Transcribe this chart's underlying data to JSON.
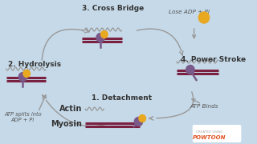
{
  "bg_color": "#c5d9e8",
  "actin_color": "#7a2040",
  "myosin_color": "#7a5a8a",
  "atp_color": "#e8a820",
  "atp_color2": "#f0c030",
  "labels": {
    "step1": "1. Detachment",
    "step2": "2. Hydrolysis",
    "step3": "3. Cross Bridge",
    "step4": "4. Power Stroke",
    "actin": "Actin",
    "myosin": "Myosin",
    "lose_adp": "Lose ADP + Pi",
    "atp_binds": "ATP Binds",
    "atp_splits": "ATP splits into\nADP + Pi"
  },
  "text_color": "#555555",
  "arrow_color": "#999999",
  "step_color": "#333333"
}
